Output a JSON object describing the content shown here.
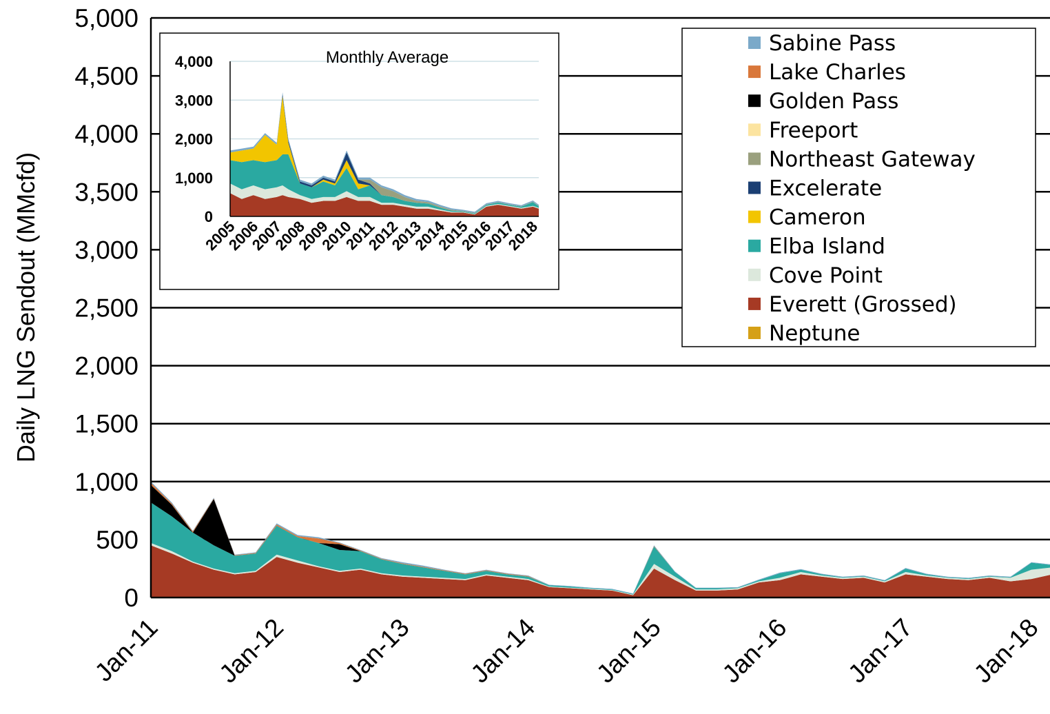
{
  "chart_data": [
    {
      "type": "area",
      "stacked": true,
      "title": "",
      "xlabel": "",
      "ylabel": "Daily LNG Sendout (MMcfd)",
      "ylim": [
        0,
        5000
      ],
      "yticks": [
        "0",
        "500",
        "1,000",
        "1,500",
        "2,000",
        "2,500",
        "3,000",
        "3,500",
        "4,000",
        "4,500",
        "5,000"
      ],
      "x_tick_labels": [
        "Jan-11",
        "Jan-12",
        "Jan-13",
        "Jan-14",
        "Jan-15",
        "Jan-16",
        "Jan-17",
        "Jan-18"
      ],
      "x_range": [
        "2011-01",
        "2018-03"
      ],
      "grid": "horizontal",
      "legend_position": "top-right",
      "x": [
        "2011-01",
        "2011-03",
        "2011-05",
        "2011-07",
        "2011-09",
        "2011-11",
        "2012-01",
        "2012-03",
        "2012-05",
        "2012-07",
        "2012-09",
        "2012-11",
        "2013-01",
        "2013-03",
        "2013-05",
        "2013-07",
        "2013-09",
        "2013-11",
        "2014-01",
        "2014-03",
        "2014-05",
        "2014-07",
        "2014-09",
        "2014-11",
        "2015-01",
        "2015-03",
        "2015-05",
        "2015-07",
        "2015-09",
        "2015-11",
        "2016-01",
        "2016-03",
        "2016-05",
        "2016-07",
        "2016-09",
        "2016-11",
        "2017-01",
        "2017-03",
        "2017-05",
        "2017-07",
        "2017-09",
        "2017-11",
        "2018-01",
        "2018-03"
      ],
      "series": [
        {
          "name": "Everett (Grossed)",
          "color": "#A63A24",
          "values": [
            450,
            380,
            300,
            240,
            200,
            220,
            350,
            300,
            260,
            220,
            240,
            200,
            180,
            170,
            160,
            150,
            190,
            170,
            150,
            90,
            80,
            70,
            60,
            20,
            250,
            150,
            60,
            60,
            70,
            130,
            150,
            200,
            180,
            160,
            170,
            130,
            200,
            180,
            160,
            150,
            170,
            140,
            160,
            200
          ]
        },
        {
          "name": "Cove Point",
          "color": "#DCE8DC",
          "values": [
            20,
            20,
            10,
            10,
            10,
            10,
            20,
            20,
            10,
            10,
            10,
            10,
            10,
            10,
            10,
            10,
            10,
            10,
            10,
            5,
            5,
            5,
            5,
            5,
            40,
            30,
            10,
            10,
            10,
            10,
            20,
            20,
            10,
            10,
            10,
            10,
            20,
            10,
            10,
            10,
            10,
            30,
            80,
            60
          ]
        },
        {
          "name": "Elba Island",
          "color": "#2AA9A1",
          "values": [
            350,
            300,
            250,
            200,
            150,
            150,
            250,
            200,
            200,
            180,
            150,
            120,
            100,
            80,
            60,
            40,
            30,
            20,
            20,
            10,
            10,
            5,
            5,
            5,
            150,
            40,
            10,
            10,
            5,
            10,
            40,
            20,
            10,
            5,
            5,
            5,
            30,
            10,
            5,
            5,
            5,
            5,
            60,
            20
          ]
        },
        {
          "name": "Neptune",
          "color": "#D5A017",
          "values": [
            0,
            0,
            0,
            0,
            0,
            0,
            0,
            0,
            0,
            0,
            0,
            0,
            0,
            0,
            0,
            0,
            0,
            0,
            0,
            0,
            0,
            0,
            0,
            0,
            0,
            0,
            0,
            0,
            0,
            0,
            0,
            0,
            0,
            0,
            0,
            0,
            0,
            0,
            0,
            0,
            0,
            0,
            0,
            0
          ]
        },
        {
          "name": "Golden Pass",
          "color": "#000000",
          "values": [
            150,
            100,
            0,
            400,
            0,
            0,
            0,
            0,
            0,
            50,
            0,
            0,
            0,
            0,
            0,
            0,
            0,
            0,
            0,
            0,
            0,
            0,
            0,
            0,
            0,
            0,
            0,
            0,
            0,
            0,
            0,
            0,
            0,
            0,
            0,
            0,
            0,
            0,
            0,
            0,
            0,
            0,
            0,
            0
          ]
        },
        {
          "name": "Lake Charles",
          "color": "#D9773A",
          "values": [
            20,
            10,
            10,
            5,
            5,
            5,
            10,
            10,
            40,
            10,
            5,
            5,
            5,
            5,
            5,
            5,
            5,
            5,
            5,
            0,
            0,
            0,
            0,
            0,
            5,
            0,
            0,
            0,
            0,
            0,
            0,
            0,
            0,
            0,
            0,
            0,
            0,
            0,
            0,
            0,
            0,
            0,
            0,
            0
          ]
        },
        {
          "name": "Sabine Pass",
          "color": "#7BA9C9",
          "values": [
            10,
            10,
            5,
            5,
            5,
            5,
            10,
            10,
            10,
            5,
            5,
            5,
            10,
            10,
            5,
            5,
            5,
            5,
            5,
            5,
            5,
            5,
            5,
            5,
            5,
            5,
            5,
            5,
            5,
            5,
            5,
            5,
            5,
            5,
            5,
            5,
            5,
            5,
            5,
            5,
            5,
            5,
            5,
            5
          ]
        }
      ]
    },
    {
      "type": "area",
      "stacked": true,
      "title": "Monthly Average",
      "ylim": [
        0,
        4000
      ],
      "yticks": [
        "0",
        "1,000",
        "2,000",
        "3,000",
        "4,000"
      ],
      "x_tick_labels": [
        "2005",
        "2006",
        "2007",
        "2008",
        "2009",
        "2010",
        "2011",
        "2012",
        "2013",
        "2014",
        "2015",
        "2016",
        "2017",
        "2018"
      ],
      "x_range": [
        2005.0,
        2018.25
      ],
      "grid": "horizontal",
      "x": [
        2005.0,
        2005.5,
        2006.0,
        2006.5,
        2007.0,
        2007.25,
        2007.5,
        2008.0,
        2008.5,
        2009.0,
        2009.5,
        2010.0,
        2010.5,
        2011.0,
        2011.5,
        2012.0,
        2012.5,
        2013.0,
        2013.5,
        2014.0,
        2014.5,
        2015.0,
        2015.5,
        2016.0,
        2016.5,
        2017.0,
        2017.5,
        2018.0,
        2018.25
      ],
      "series": [
        {
          "name": "Everett (Grossed)",
          "color": "#A63A24",
          "values": [
            600,
            450,
            550,
            450,
            500,
            550,
            500,
            450,
            350,
            400,
            400,
            500,
            400,
            400,
            300,
            300,
            250,
            200,
            200,
            150,
            100,
            100,
            50,
            250,
            300,
            250,
            200,
            250,
            200
          ]
        },
        {
          "name": "Cove Point",
          "color": "#DCE8DC",
          "values": [
            250,
            250,
            250,
            250,
            250,
            250,
            200,
            100,
            100,
            100,
            100,
            150,
            100,
            100,
            50,
            50,
            50,
            50,
            50,
            30,
            20,
            10,
            10,
            20,
            20,
            20,
            20,
            20,
            20
          ]
        },
        {
          "name": "Elba Island",
          "color": "#2AA9A1",
          "values": [
            600,
            700,
            650,
            700,
            700,
            800,
            900,
            300,
            300,
            400,
            300,
            600,
            200,
            300,
            200,
            150,
            100,
            100,
            80,
            50,
            30,
            20,
            20,
            30,
            40,
            30,
            30,
            100,
            40
          ]
        },
        {
          "name": "Cameron",
          "color": "#F2C500",
          "values": [
            200,
            300,
            300,
            700,
            400,
            1500,
            300,
            0,
            0,
            50,
            50,
            200,
            150,
            0,
            0,
            0,
            0,
            0,
            0,
            0,
            0,
            0,
            0,
            0,
            0,
            0,
            0,
            0,
            0
          ]
        },
        {
          "name": "Excelerate",
          "color": "#1B3F73",
          "values": [
            0,
            0,
            0,
            0,
            0,
            50,
            50,
            50,
            50,
            50,
            50,
            200,
            100,
            50,
            0,
            0,
            0,
            0,
            0,
            0,
            0,
            0,
            0,
            0,
            0,
            0,
            0,
            0,
            0
          ]
        },
        {
          "name": "Northeast Gateway",
          "color": "#9AA07E",
          "values": [
            0,
            0,
            0,
            0,
            0,
            0,
            0,
            0,
            0,
            0,
            0,
            0,
            0,
            100,
            200,
            150,
            100,
            50,
            40,
            30,
            20,
            10,
            10,
            10,
            10,
            10,
            10,
            10,
            10
          ]
        },
        {
          "name": "Sabine Pass",
          "color": "#7BA9C9",
          "values": [
            50,
            50,
            50,
            50,
            50,
            50,
            50,
            50,
            50,
            50,
            50,
            50,
            50,
            50,
            50,
            50,
            50,
            50,
            40,
            40,
            40,
            30,
            30,
            30,
            30,
            30,
            30,
            30,
            30
          ]
        }
      ]
    }
  ],
  "legend": {
    "items": [
      {
        "label": "Sabine Pass",
        "color": "#7BA9C9"
      },
      {
        "label": "Lake Charles",
        "color": "#D9773A"
      },
      {
        "label": "Golden Pass",
        "color": "#000000"
      },
      {
        "label": "Freeport",
        "color": "#FCE4A0"
      },
      {
        "label": "Northeast Gateway",
        "color": "#9AA07E"
      },
      {
        "label": "Excelerate",
        "color": "#1B3F73"
      },
      {
        "label": "Cameron",
        "color": "#F2C500"
      },
      {
        "label": "Elba Island",
        "color": "#2AA9A1"
      },
      {
        "label": "Cove Point",
        "color": "#DCE8DC"
      },
      {
        "label": "Everett (Grossed)",
        "color": "#A63A24"
      },
      {
        "label": "Neptune",
        "color": "#D5A017"
      }
    ]
  }
}
